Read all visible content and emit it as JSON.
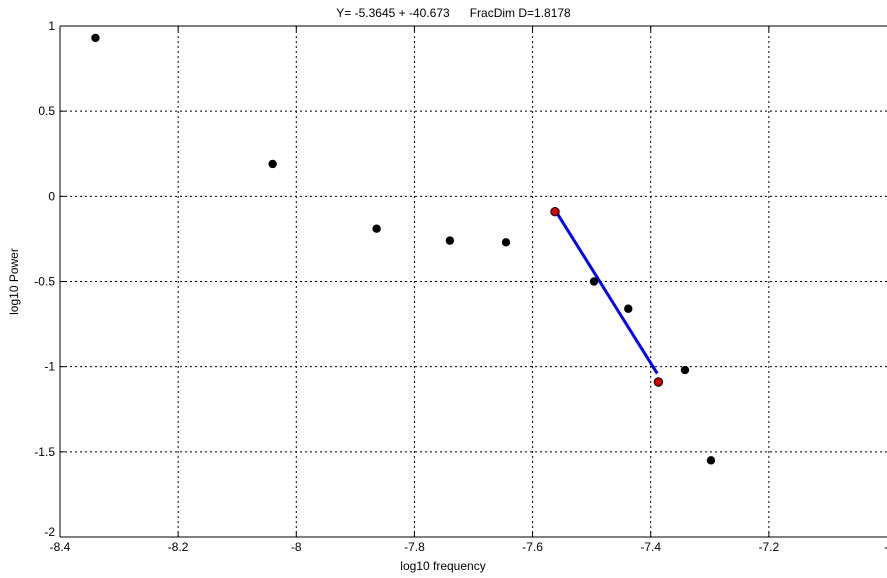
{
  "chart_data": {
    "type": "scatter",
    "title": "Y= -5.3645 + -40.673      FracDim D=1.8178",
    "xlabel": "log10 frequency",
    "ylabel": "log10 Power",
    "xlim": [
      -8.4,
      -7.0
    ],
    "ylim": [
      -2,
      1
    ],
    "x_ticks": [
      -8.4,
      -8.2,
      -8,
      -7.8,
      -7.6,
      -7.4,
      -7.2
    ],
    "x_tick_labels": [
      "-8.4",
      "-8.2",
      "-8",
      "-7.8",
      "-7.6",
      "-7.4",
      "-7.2"
    ],
    "y_ticks": [
      -2,
      -1.5,
      -1,
      -0.5,
      0,
      0.5,
      1
    ],
    "y_tick_labels": [
      "-2",
      "-1.5",
      "-1",
      "-0.5",
      "0",
      "0.5",
      "1"
    ],
    "grid": true,
    "series": [
      {
        "color": "#000000",
        "x": [
          -8.34,
          -8.04,
          -7.864,
          -7.74,
          -7.645,
          -7.496,
          -7.438,
          -7.342,
          -7.298
        ],
        "y": [
          0.93,
          0.19,
          -0.19,
          -0.26,
          -0.27,
          -0.5,
          -0.66,
          -1.02,
          -1.55
        ]
      },
      {
        "color": "#cc0000",
        "x": [
          -7.562,
          -7.387
        ],
        "y": [
          -0.09,
          -1.09
        ]
      },
      {
        "type": "line",
        "color": "#0000ff",
        "x": [
          -7.562,
          -7.389
        ],
        "y": [
          -0.08,
          -1.04
        ]
      }
    ]
  }
}
